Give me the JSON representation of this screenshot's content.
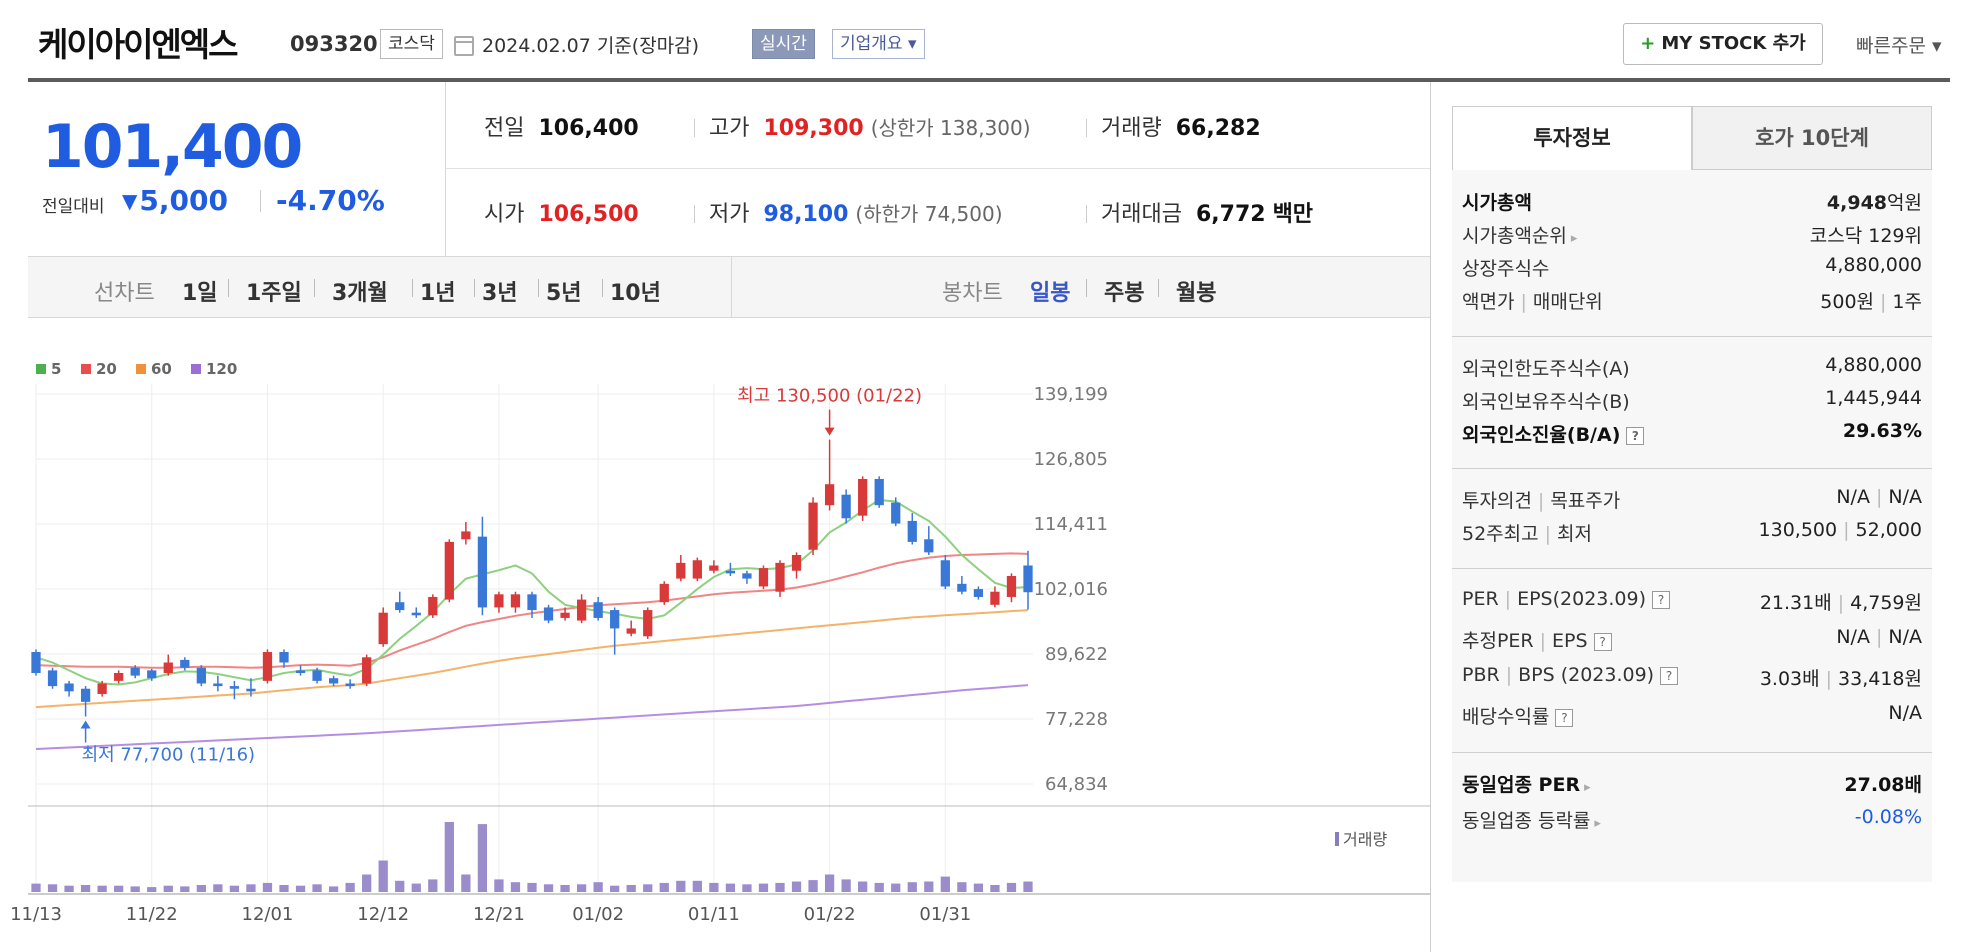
{
  "header": {
    "company_name": "케이아이엔엑스",
    "code": "093320",
    "market": "코스닥",
    "date_text": "2024.02.07  기준(장마감)",
    "realtime_label": "실시간",
    "company_overview_label": "기업개요 ▾",
    "my_stock_label": "MY STOCK 추가",
    "quick_order_label": "빠른주문 ▾"
  },
  "price": {
    "current": "101,400",
    "change_label": "전일대비",
    "change_icon": "down-triangle-icon",
    "change_value": "5,000",
    "change_percent": "-4.70%"
  },
  "quote": {
    "prev_label": "전일",
    "prev": "106,400",
    "high_label": "고가",
    "high": "109,300",
    "upper_limit": "(상한가 138,300)",
    "volume_label": "거래량",
    "volume": "66,282",
    "open_label": "시가",
    "open": "106,500",
    "low_label": "저가",
    "low": "98,100",
    "lower_limit": "(하한가 74,500)",
    "amount_label": "거래대금",
    "amount": "6,772",
    "amount_unit": "백만"
  },
  "period_bar": {
    "line_chart_label": "선차트",
    "line_periods": [
      "1일",
      "1주일",
      "3개월",
      "1년",
      "3년",
      "5년",
      "10년"
    ],
    "candle_chart_label": "봉차트",
    "candle_periods": [
      "일봉",
      "주봉",
      "월봉"
    ],
    "active_candle": "일봉"
  },
  "chart_data": {
    "type": "candlestick",
    "legend": [
      {
        "name": "5",
        "color": "#4caf50"
      },
      {
        "name": "20",
        "color": "#e84e4e"
      },
      {
        "name": "60",
        "color": "#f0903a"
      },
      {
        "name": "120",
        "color": "#9c6fd6"
      }
    ],
    "y_ticks": [
      "139,199",
      "126,805",
      "114,411",
      "102,016",
      "89,622",
      "77,228",
      "64,834"
    ],
    "ylim": [
      64834,
      139199
    ],
    "x_ticks": [
      {
        "i": 0,
        "label": "11/13"
      },
      {
        "i": 7,
        "label": "11/22"
      },
      {
        "i": 14,
        "label": "12/01"
      },
      {
        "i": 21,
        "label": "12/12"
      },
      {
        "i": 28,
        "label": "12/21"
      },
      {
        "i": 34,
        "label": "01/02"
      },
      {
        "i": 41,
        "label": "01/11"
      },
      {
        "i": 48,
        "label": "01/22"
      },
      {
        "i": 55,
        "label": "01/31"
      }
    ],
    "high_annotation": "최고 130,500 (01/22)",
    "low_annotation": "최저 77,700 (11/16)",
    "volume_label": "거래량",
    "candles": [
      [
        90000,
        86000,
        90500,
        85500
      ],
      [
        86500,
        83500,
        87000,
        83000
      ],
      [
        84000,
        82500,
        84500,
        81500
      ],
      [
        83000,
        80500,
        83500,
        77700
      ],
      [
        82000,
        84000,
        84500,
        81500
      ],
      [
        84500,
        86000,
        86500,
        84000
      ],
      [
        87000,
        85500,
        87500,
        85000
      ],
      [
        86500,
        85000,
        86800,
        84500
      ],
      [
        86000,
        88000,
        89500,
        85500
      ],
      [
        88500,
        87000,
        89000,
        86500
      ],
      [
        87000,
        84000,
        87500,
        83500
      ],
      [
        84000,
        83500,
        85500,
        82500
      ],
      [
        83500,
        83000,
        84500,
        81000
      ],
      [
        83000,
        82500,
        85000,
        81500
      ],
      [
        84500,
        90000,
        90500,
        84000
      ],
      [
        90000,
        88000,
        90500,
        87000
      ],
      [
        86500,
        86000,
        87500,
        85500
      ],
      [
        86500,
        84500,
        87000,
        84000
      ],
      [
        85000,
        84000,
        85500,
        83500
      ],
      [
        84000,
        83500,
        84800,
        83000
      ],
      [
        84000,
        89000,
        89500,
        83500
      ],
      [
        91500,
        97500,
        98500,
        91000
      ],
      [
        99500,
        98000,
        101500,
        97500
      ],
      [
        97500,
        97000,
        98500,
        96500
      ],
      [
        97000,
        100500,
        101000,
        96500
      ],
      [
        100000,
        111000,
        111500,
        99500
      ],
      [
        111500,
        113000,
        114800,
        110500
      ],
      [
        112000,
        98500,
        115800,
        97000
      ],
      [
        98500,
        101000,
        101500,
        97500
      ],
      [
        98500,
        101000,
        101500,
        97500
      ],
      [
        101000,
        98000,
        101500,
        96500
      ],
      [
        98500,
        96000,
        99000,
        95500
      ],
      [
        96500,
        97500,
        98500,
        96000
      ],
      [
        96000,
        100000,
        101000,
        95500
      ],
      [
        99500,
        96500,
        100500,
        96000
      ],
      [
        98000,
        94500,
        98500,
        89500
      ],
      [
        93500,
        94500,
        96000,
        93000
      ],
      [
        93000,
        98000,
        98500,
        92500
      ],
      [
        99500,
        103000,
        103500,
        99000
      ],
      [
        104000,
        107000,
        108500,
        103500
      ],
      [
        104000,
        107500,
        108000,
        103500
      ],
      [
        105500,
        106500,
        107500,
        105000
      ],
      [
        105500,
        105000,
        107000,
        104500
      ],
      [
        105000,
        104000,
        105500,
        103000
      ],
      [
        102500,
        106000,
        106500,
        102000
      ],
      [
        101500,
        107000,
        107500,
        100500
      ],
      [
        105500,
        108500,
        109000,
        104000
      ],
      [
        109500,
        118500,
        119500,
        108500
      ],
      [
        118000,
        122000,
        130500,
        117000
      ],
      [
        120000,
        115500,
        121000,
        114500
      ],
      [
        116000,
        123000,
        123500,
        115000
      ],
      [
        123000,
        118000,
        123500,
        117500
      ],
      [
        118500,
        114500,
        119500,
        114000
      ],
      [
        115000,
        111000,
        116500,
        110500
      ],
      [
        111500,
        109000,
        114000,
        108500
      ],
      [
        107500,
        102500,
        108500,
        102000
      ],
      [
        103000,
        101500,
        104500,
        101000
      ],
      [
        102000,
        100500,
        102500,
        100000
      ],
      [
        99000,
        101500,
        102500,
        98500
      ],
      [
        100500,
        104500,
        105000,
        99500
      ],
      [
        106500,
        101400,
        109300,
        98100
      ]
    ],
    "ma5": [
      89000,
      88000,
      86500,
      85000,
      84000,
      83800,
      84200,
      85000,
      85800,
      86300,
      86200,
      85800,
      85200,
      84600,
      85200,
      86000,
      86400,
      86600,
      86000,
      85500,
      86800,
      89500,
      92500,
      95000,
      97600,
      101000,
      104000,
      104800,
      105600,
      106500,
      105000,
      101500,
      99000,
      98400,
      97800,
      97300,
      96700,
      96300,
      97000,
      99400,
      102000,
      104300,
      105800,
      106000,
      105800,
      106000,
      106700,
      109400,
      112800,
      114700,
      117000,
      119000,
      118700,
      116800,
      115000,
      112000,
      108500,
      105800,
      103200,
      102200,
      102400
    ],
    "ma20": [
      87500,
      87400,
      87300,
      87200,
      87200,
      87200,
      87100,
      87000,
      87000,
      87100,
      87200,
      87200,
      87100,
      87000,
      87100,
      87300,
      87500,
      87600,
      87500,
      87400,
      87900,
      89000,
      90300,
      91400,
      92500,
      93800,
      95000,
      95700,
      96300,
      96900,
      97400,
      97800,
      98200,
      98600,
      98900,
      99100,
      99300,
      99500,
      99800,
      100200,
      100600,
      101000,
      101300,
      101500,
      101700,
      101900,
      102300,
      102900,
      103600,
      104400,
      105200,
      106100,
      106900,
      107500,
      108000,
      108300,
      108500,
      108600,
      108700,
      108800,
      108700
    ],
    "ma60": [
      79500,
      79700,
      79900,
      80100,
      80300,
      80500,
      80700,
      80900,
      81100,
      81300,
      81500,
      81700,
      81900,
      82100,
      82400,
      82700,
      83000,
      83300,
      83500,
      83700,
      84000,
      84500,
      85000,
      85500,
      86000,
      86600,
      87200,
      87800,
      88300,
      88800,
      89200,
      89600,
      90000,
      90400,
      90800,
      91200,
      91500,
      91800,
      92100,
      92400,
      92700,
      93000,
      93300,
      93600,
      93900,
      94200,
      94500,
      94800,
      95100,
      95400,
      95700,
      96000,
      96300,
      96600,
      96800,
      97000,
      97200,
      97400,
      97600,
      97800,
      98000
    ],
    "ma120": [
      71500,
      71650,
      71800,
      71950,
      72100,
      72250,
      72400,
      72550,
      72700,
      72850,
      73000,
      73150,
      73300,
      73450,
      73600,
      73750,
      73900,
      74050,
      74200,
      74350,
      74500,
      74700,
      74900,
      75100,
      75300,
      75500,
      75700,
      75900,
      76100,
      76300,
      76500,
      76700,
      76900,
      77100,
      77300,
      77500,
      77700,
      77900,
      78100,
      78300,
      78500,
      78700,
      78900,
      79100,
      79300,
      79500,
      79700,
      80000,
      80300,
      80600,
      80900,
      81200,
      81500,
      81800,
      82100,
      82400,
      82700,
      82950,
      83200,
      83450,
      83700
    ],
    "volumes": [
      12,
      11,
      9,
      10,
      9,
      9,
      8,
      7,
      9,
      8,
      10,
      11,
      9,
      11,
      13,
      10,
      9,
      11,
      8,
      13,
      25,
      45,
      16,
      12,
      18,
      100,
      25,
      97,
      18,
      14,
      13,
      11,
      10,
      11,
      14,
      9,
      10,
      11,
      13,
      16,
      16,
      13,
      12,
      11,
      12,
      13,
      15,
      17,
      25,
      18,
      15,
      13,
      12,
      14,
      15,
      22,
      14,
      12,
      10,
      13,
      15
    ]
  },
  "info_panel": {
    "tab_invest": "투자정보",
    "tab_orderbook": "호가 10단계",
    "rows": {
      "market_cap_label": "시가총액",
      "market_cap_num": "4,948",
      "market_cap_unit": "억원",
      "market_cap_rank_label": "시가총액순위",
      "market_cap_rank": "코스닥 129위",
      "listed_shares_label": "상장주식수",
      "listed_shares": "4,880,000",
      "par_label": "액면가",
      "trade_unit_label": "매매단위",
      "par_value": "500원",
      "trade_unit": "1주",
      "foreign_limit_label": "외국인한도주식수(A)",
      "foreign_limit": "4,880,000",
      "foreign_held_label": "외국인보유주식수(B)",
      "foreign_held": "1,445,944",
      "foreign_ratio_label": "외국인소진율(B/A)",
      "foreign_ratio": "29.63%",
      "opinion_label": "투자의견",
      "target_label": "목표주가",
      "opinion": "N/A",
      "target": "N/A",
      "week52_label": "52주최고",
      "week52_low_label": "최저",
      "week52_high": "130,500",
      "week52_low": "52,000",
      "per_label": "PER",
      "eps_label": "EPS(2023.09)",
      "per": "21.31배",
      "eps": "4,759원",
      "est_per_label": "추정PER",
      "est_eps_label": "EPS",
      "est_per": "N/A",
      "est_eps": "N/A",
      "pbr_label": "PBR",
      "bps_label": "BPS (2023.09)",
      "pbr": "3.03배",
      "bps": "33,418원",
      "dividend_label": "배당수익률",
      "dividend": "N/A",
      "industry_per_label": "동일업종 PER",
      "industry_per": "27.08배",
      "industry_change_label": "동일업종 등락률",
      "industry_change": "-0.08%"
    }
  }
}
